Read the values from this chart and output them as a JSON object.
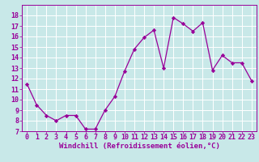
{
  "x": [
    0,
    1,
    2,
    3,
    4,
    5,
    6,
    7,
    8,
    9,
    10,
    11,
    12,
    13,
    14,
    15,
    16,
    17,
    18,
    19,
    20,
    21,
    22,
    23
  ],
  "y": [
    11.5,
    9.5,
    8.5,
    8.0,
    8.5,
    8.5,
    7.2,
    7.2,
    9.0,
    10.3,
    12.7,
    14.8,
    15.9,
    16.6,
    13.0,
    17.8,
    17.2,
    16.5,
    17.3,
    12.8,
    14.2,
    13.5,
    13.5,
    11.8
  ],
  "line_color": "#990099",
  "marker": "D",
  "marker_size": 2.2,
  "line_width": 0.9,
  "xlabel": "Windchill (Refroidissement éolien,°C)",
  "xlim": [
    -0.5,
    23.5
  ],
  "ylim": [
    7,
    19
  ],
  "yticks": [
    7,
    8,
    9,
    10,
    11,
    12,
    13,
    14,
    15,
    16,
    17,
    18
  ],
  "xticks": [
    0,
    1,
    2,
    3,
    4,
    5,
    6,
    7,
    8,
    9,
    10,
    11,
    12,
    13,
    14,
    15,
    16,
    17,
    18,
    19,
    20,
    21,
    22,
    23
  ],
  "bg_color": "#c8e8e8",
  "grid_color": "#ffffff",
  "tick_color": "#990099",
  "label_color": "#990099",
  "xlabel_fontsize": 6.5,
  "tick_fontsize": 6.0,
  "border_color": "#990099",
  "spine_linewidth": 0.7
}
